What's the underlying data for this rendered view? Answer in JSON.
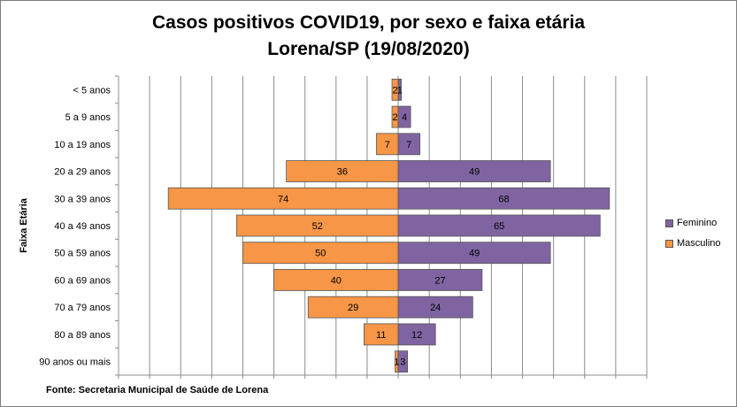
{
  "chart_data": {
    "type": "bar",
    "orientation": "horizontal",
    "layout": "population-pyramid",
    "title": "Casos positivos COVID19, por sexo e faixa etária",
    "subtitle": "Lorena/SP (19/08/2020)",
    "ylabel": "Faixa Etária",
    "xlim": [
      -90,
      80
    ],
    "grid": true,
    "legend_position": "right",
    "categories": [
      "< 5 anos",
      "5 a 9 anos",
      "10 a 19 anos",
      "20 a 29 anos",
      "30 a 39 anos",
      "40 a 49 anos",
      "50 a 59 anos",
      "60 a 69 anos ",
      "70 a 79 anos",
      "80 a 89 anos",
      "90 anos ou mais"
    ],
    "series": [
      {
        "name": "Feminino",
        "color": "#8064a2",
        "values": [
          1,
          4,
          7,
          49,
          68,
          65,
          49,
          27,
          24,
          12,
          3
        ]
      },
      {
        "name": "Masculino",
        "color": "#f79646",
        "values": [
          2,
          2,
          7,
          36,
          74,
          52,
          50,
          40,
          29,
          11,
          1
        ]
      }
    ],
    "footer": "Fonte: Secretaria Municipal  de Saúde de Lorena"
  }
}
